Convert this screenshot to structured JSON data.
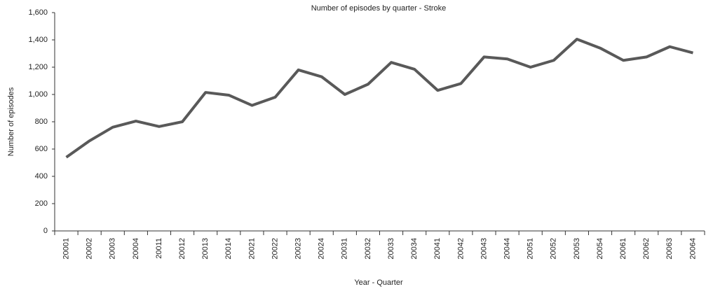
{
  "chart_data": {
    "type": "line",
    "title": "Number of episodes by quarter - Stroke",
    "x_label": "Year - Quarter",
    "y_label": "Number of episodes",
    "categories": [
      "20001",
      "20002",
      "20003",
      "20004",
      "20011",
      "20012",
      "20013",
      "20014",
      "20021",
      "20022",
      "20023",
      "20024",
      "20031",
      "20032",
      "20033",
      "20034",
      "20041",
      "20042",
      "20043",
      "20044",
      "20051",
      "20052",
      "20053",
      "20054",
      "20061",
      "20062",
      "20063",
      "20064"
    ],
    "series": [
      {
        "name": "Stroke",
        "color": "#595959",
        "values": [
          540,
          660,
          760,
          805,
          765,
          800,
          1015,
          995,
          920,
          980,
          1180,
          1130,
          1000,
          1075,
          1235,
          1185,
          1030,
          1080,
          1275,
          1260,
          1200,
          1250,
          1405,
          1340,
          1250,
          1275,
          1350,
          1305
        ]
      }
    ],
    "ylim": [
      0,
      1600
    ],
    "yticks": [
      0,
      200,
      400,
      600,
      800,
      {
        "value": 1000,
        "label": "1,000"
      },
      {
        "value": 1200,
        "label": "1,200"
      },
      {
        "value": 1400,
        "label": "1,400"
      },
      {
        "value": 1600,
        "label": "1,600"
      }
    ],
    "grid": false
  }
}
